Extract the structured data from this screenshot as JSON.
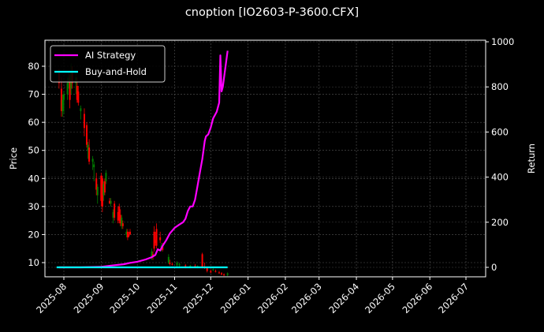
{
  "header": {
    "title": "cnoption [IO2603-P-3600.CFX]"
  },
  "chart_data": {
    "type": "candlestick+line",
    "title": "cnoption [IO2603-P-3600.CFX]",
    "xlabel": "",
    "ylabel": "Price",
    "y2label": "Return",
    "ylim": [
      5,
      89
    ],
    "y2lim": [
      -50,
      1000
    ],
    "grid": true,
    "legend_position": "upper left",
    "x_ticks": [
      "2025-08",
      "2025-09",
      "2025-10",
      "2025-11",
      "2025-12",
      "2026-01",
      "2026-02",
      "2026-03",
      "2026-04",
      "2026-05",
      "2026-06",
      "2026-07"
    ],
    "y_ticks": [
      10,
      20,
      30,
      40,
      50,
      60,
      70,
      80
    ],
    "y2_ticks": [
      0,
      200,
      400,
      600,
      800,
      1000
    ],
    "legend": [
      {
        "name": "AI Strategy",
        "color": "#ff00ff"
      },
      {
        "name": "Buy-and-Hold",
        "color": "#00ffff"
      }
    ],
    "candles": [
      {
        "d": "2025-07-28",
        "o": 78,
        "h": 79,
        "l": 72,
        "c": 74
      },
      {
        "d": "2025-07-30",
        "o": 72,
        "h": 76,
        "l": 62,
        "c": 64
      },
      {
        "d": "2025-07-31",
        "o": 64,
        "h": 70,
        "l": 62,
        "c": 68
      },
      {
        "d": "2025-08-01",
        "o": 68,
        "h": 71,
        "l": 63,
        "c": 70
      },
      {
        "d": "2025-08-04",
        "o": 70,
        "h": 76,
        "l": 68,
        "c": 74
      },
      {
        "d": "2025-08-05",
        "o": 74,
        "h": 78,
        "l": 72,
        "c": 76
      },
      {
        "d": "2025-08-06",
        "o": 75,
        "h": 77,
        "l": 65,
        "c": 68
      },
      {
        "d": "2025-08-07",
        "o": 72,
        "h": 81,
        "l": 70,
        "c": 78
      },
      {
        "d": "2025-08-08",
        "o": 78,
        "h": 80,
        "l": 72,
        "c": 74
      },
      {
        "d": "2025-08-11",
        "o": 74,
        "h": 78,
        "l": 70,
        "c": 76
      },
      {
        "d": "2025-08-12",
        "o": 73,
        "h": 76,
        "l": 67,
        "c": 68
      },
      {
        "d": "2025-08-13",
        "o": 71,
        "h": 73,
        "l": 66,
        "c": 67
      },
      {
        "d": "2025-08-15",
        "o": 64,
        "h": 66,
        "l": 61,
        "c": 65
      },
      {
        "d": "2025-08-18",
        "o": 63,
        "h": 65,
        "l": 55,
        "c": 58
      },
      {
        "d": "2025-08-20",
        "o": 59,
        "h": 60,
        "l": 51,
        "c": 52
      },
      {
        "d": "2025-08-21",
        "o": 50,
        "h": 53,
        "l": 47,
        "c": 52
      },
      {
        "d": "2025-08-22",
        "o": 51,
        "h": 54,
        "l": 45,
        "c": 46
      },
      {
        "d": "2025-08-25",
        "o": 46,
        "h": 48,
        "l": 43,
        "c": 47
      },
      {
        "d": "2025-08-26",
        "o": 44,
        "h": 46,
        "l": 39,
        "c": 45
      },
      {
        "d": "2025-08-28",
        "o": 40,
        "h": 42,
        "l": 34,
        "c": 36
      },
      {
        "d": "2025-08-29",
        "o": 34,
        "h": 38,
        "l": 31,
        "c": 37
      },
      {
        "d": "2025-09-01",
        "o": 41,
        "h": 42,
        "l": 30,
        "c": 32
      },
      {
        "d": "2025-09-02",
        "o": 40,
        "h": 41,
        "l": 28,
        "c": 30
      },
      {
        "d": "2025-09-03",
        "o": 34,
        "h": 39,
        "l": 32,
        "c": 38
      },
      {
        "d": "2025-09-04",
        "o": 39,
        "h": 40,
        "l": 34,
        "c": 35
      },
      {
        "d": "2025-09-05",
        "o": 39,
        "h": 43,
        "l": 38,
        "c": 42
      },
      {
        "d": "2025-09-08",
        "o": 32,
        "h": 33,
        "l": 31,
        "c": 31
      },
      {
        "d": "2025-09-09",
        "o": 31,
        "h": 33,
        "l": 30,
        "c": 32
      },
      {
        "d": "2025-09-11",
        "o": 26,
        "h": 29,
        "l": 24,
        "c": 28
      },
      {
        "d": "2025-09-12",
        "o": 31,
        "h": 32,
        "l": 25,
        "c": 26
      },
      {
        "d": "2025-09-15",
        "o": 28,
        "h": 30,
        "l": 24,
        "c": 25
      },
      {
        "d": "2025-09-16",
        "o": 30,
        "h": 31,
        "l": 24,
        "c": 25
      },
      {
        "d": "2025-09-17",
        "o": 27,
        "h": 29,
        "l": 23,
        "c": 24
      },
      {
        "d": "2025-09-18",
        "o": 23,
        "h": 27,
        "l": 22,
        "c": 26
      },
      {
        "d": "2025-09-19",
        "o": 24,
        "h": 25,
        "l": 22,
        "c": 23
      },
      {
        "d": "2025-09-22",
        "o": 20,
        "h": 22,
        "l": 19,
        "c": 21
      },
      {
        "d": "2025-09-23",
        "o": 21,
        "h": 22,
        "l": 18,
        "c": 19
      },
      {
        "d": "2025-09-24",
        "o": 20,
        "h": 21,
        "l": 19,
        "c": 19.5
      },
      {
        "d": "2025-09-25",
        "o": 21,
        "h": 22,
        "l": 20,
        "c": 20
      },
      {
        "d": "2025-10-13",
        "o": 12,
        "h": 15,
        "l": 11,
        "c": 14
      },
      {
        "d": "2025-10-14",
        "o": 13,
        "h": 14,
        "l": 11,
        "c": 12
      },
      {
        "d": "2025-10-15",
        "o": 21,
        "h": 23,
        "l": 14,
        "c": 15
      },
      {
        "d": "2025-10-16",
        "o": 18,
        "h": 21,
        "l": 16,
        "c": 17
      },
      {
        "d": "2025-10-17",
        "o": 22,
        "h": 24,
        "l": 15,
        "c": 16
      },
      {
        "d": "2025-10-20",
        "o": 19,
        "h": 21,
        "l": 17,
        "c": 18
      },
      {
        "d": "2025-10-21",
        "o": 15,
        "h": 17,
        "l": 14,
        "c": 16
      },
      {
        "d": "2025-10-22",
        "o": 16,
        "h": 17,
        "l": 14,
        "c": 14.5
      },
      {
        "d": "2025-10-27",
        "o": 10,
        "h": 13,
        "l": 9.5,
        "c": 12
      },
      {
        "d": "2025-10-28",
        "o": 10,
        "h": 11,
        "l": 9,
        "c": 9.5
      },
      {
        "d": "2025-10-30",
        "o": 9.5,
        "h": 10,
        "l": 9,
        "c": 9.2
      },
      {
        "d": "2025-11-03",
        "o": 9,
        "h": 10.5,
        "l": 8.5,
        "c": 10
      },
      {
        "d": "2025-11-05",
        "o": 9,
        "h": 10,
        "l": 8.5,
        "c": 9.5
      },
      {
        "d": "2025-11-10",
        "o": 9,
        "h": 9.5,
        "l": 8,
        "c": 8.7
      },
      {
        "d": "2025-11-14",
        "o": 8.6,
        "h": 9.2,
        "l": 8,
        "c": 8.9
      },
      {
        "d": "2025-11-18",
        "o": 8.8,
        "h": 9.5,
        "l": 8.2,
        "c": 8.4
      },
      {
        "d": "2025-11-20",
        "o": 8.5,
        "h": 9,
        "l": 8,
        "c": 8.8
      },
      {
        "d": "2025-11-24",
        "o": 13,
        "h": 13.5,
        "l": 8,
        "c": 8.5
      },
      {
        "d": "2025-11-26",
        "o": 8.3,
        "h": 10,
        "l": 7.8,
        "c": 8
      },
      {
        "d": "2025-11-28",
        "o": 8,
        "h": 8.5,
        "l": 6.5,
        "c": 7
      },
      {
        "d": "2025-12-01",
        "o": 7,
        "h": 7.5,
        "l": 6.2,
        "c": 6.5
      },
      {
        "d": "2025-12-03",
        "o": 7.5,
        "h": 8,
        "l": 7,
        "c": 7.6
      },
      {
        "d": "2025-12-05",
        "o": 7,
        "h": 7.5,
        "l": 6.5,
        "c": 6.8
      },
      {
        "d": "2025-12-08",
        "o": 6.5,
        "h": 7,
        "l": 6,
        "c": 6.3
      },
      {
        "d": "2025-12-10",
        "o": 6.2,
        "h": 6.6,
        "l": 5.5,
        "c": 5.8
      },
      {
        "d": "2025-12-12",
        "o": 5.8,
        "h": 6.2,
        "l": 5.2,
        "c": 5.5
      },
      {
        "d": "2025-12-15",
        "o": 5.6,
        "h": 6.5,
        "l": 5.2,
        "c": 6.2
      }
    ],
    "series": [
      {
        "name": "AI Strategy",
        "color": "#ff00ff",
        "axis": "right",
        "points": [
          [
            "2025-07-28",
            0
          ],
          [
            "2025-08-15",
            0
          ],
          [
            "2025-09-01",
            2
          ],
          [
            "2025-09-10",
            8
          ],
          [
            "2025-09-20",
            14
          ],
          [
            "2025-09-25",
            20
          ],
          [
            "2025-10-01",
            25
          ],
          [
            "2025-10-08",
            35
          ],
          [
            "2025-10-13",
            45
          ],
          [
            "2025-10-16",
            55
          ],
          [
            "2025-10-18",
            80
          ],
          [
            "2025-10-20",
            75
          ],
          [
            "2025-10-22",
            95
          ],
          [
            "2025-10-25",
            120
          ],
          [
            "2025-10-28",
            150
          ],
          [
            "2025-11-01",
            175
          ],
          [
            "2025-11-05",
            190
          ],
          [
            "2025-11-08",
            200
          ],
          [
            "2025-11-10",
            215
          ],
          [
            "2025-11-12",
            250
          ],
          [
            "2025-11-14",
            270
          ],
          [
            "2025-11-16",
            270
          ],
          [
            "2025-11-18",
            300
          ],
          [
            "2025-11-20",
            360
          ],
          [
            "2025-11-22",
            420
          ],
          [
            "2025-11-24",
            480
          ],
          [
            "2025-11-26",
            560
          ],
          [
            "2025-11-27",
            580
          ],
          [
            "2025-11-29",
            590
          ],
          [
            "2025-12-01",
            620
          ],
          [
            "2025-12-03",
            660
          ],
          [
            "2025-12-05",
            680
          ],
          [
            "2025-12-06",
            690
          ],
          [
            "2025-12-08",
            730
          ],
          [
            "2025-12-09",
            940
          ],
          [
            "2025-12-10",
            780
          ],
          [
            "2025-12-11",
            800
          ],
          [
            "2025-12-15",
            960
          ]
        ]
      },
      {
        "name": "Buy-and-Hold",
        "color": "#00ffff",
        "axis": "right",
        "points": [
          [
            "2025-07-26",
            0
          ],
          [
            "2025-12-15",
            0
          ]
        ]
      }
    ],
    "candle_colors": {
      "up": "#008000",
      "down": "#ff0000"
    }
  }
}
